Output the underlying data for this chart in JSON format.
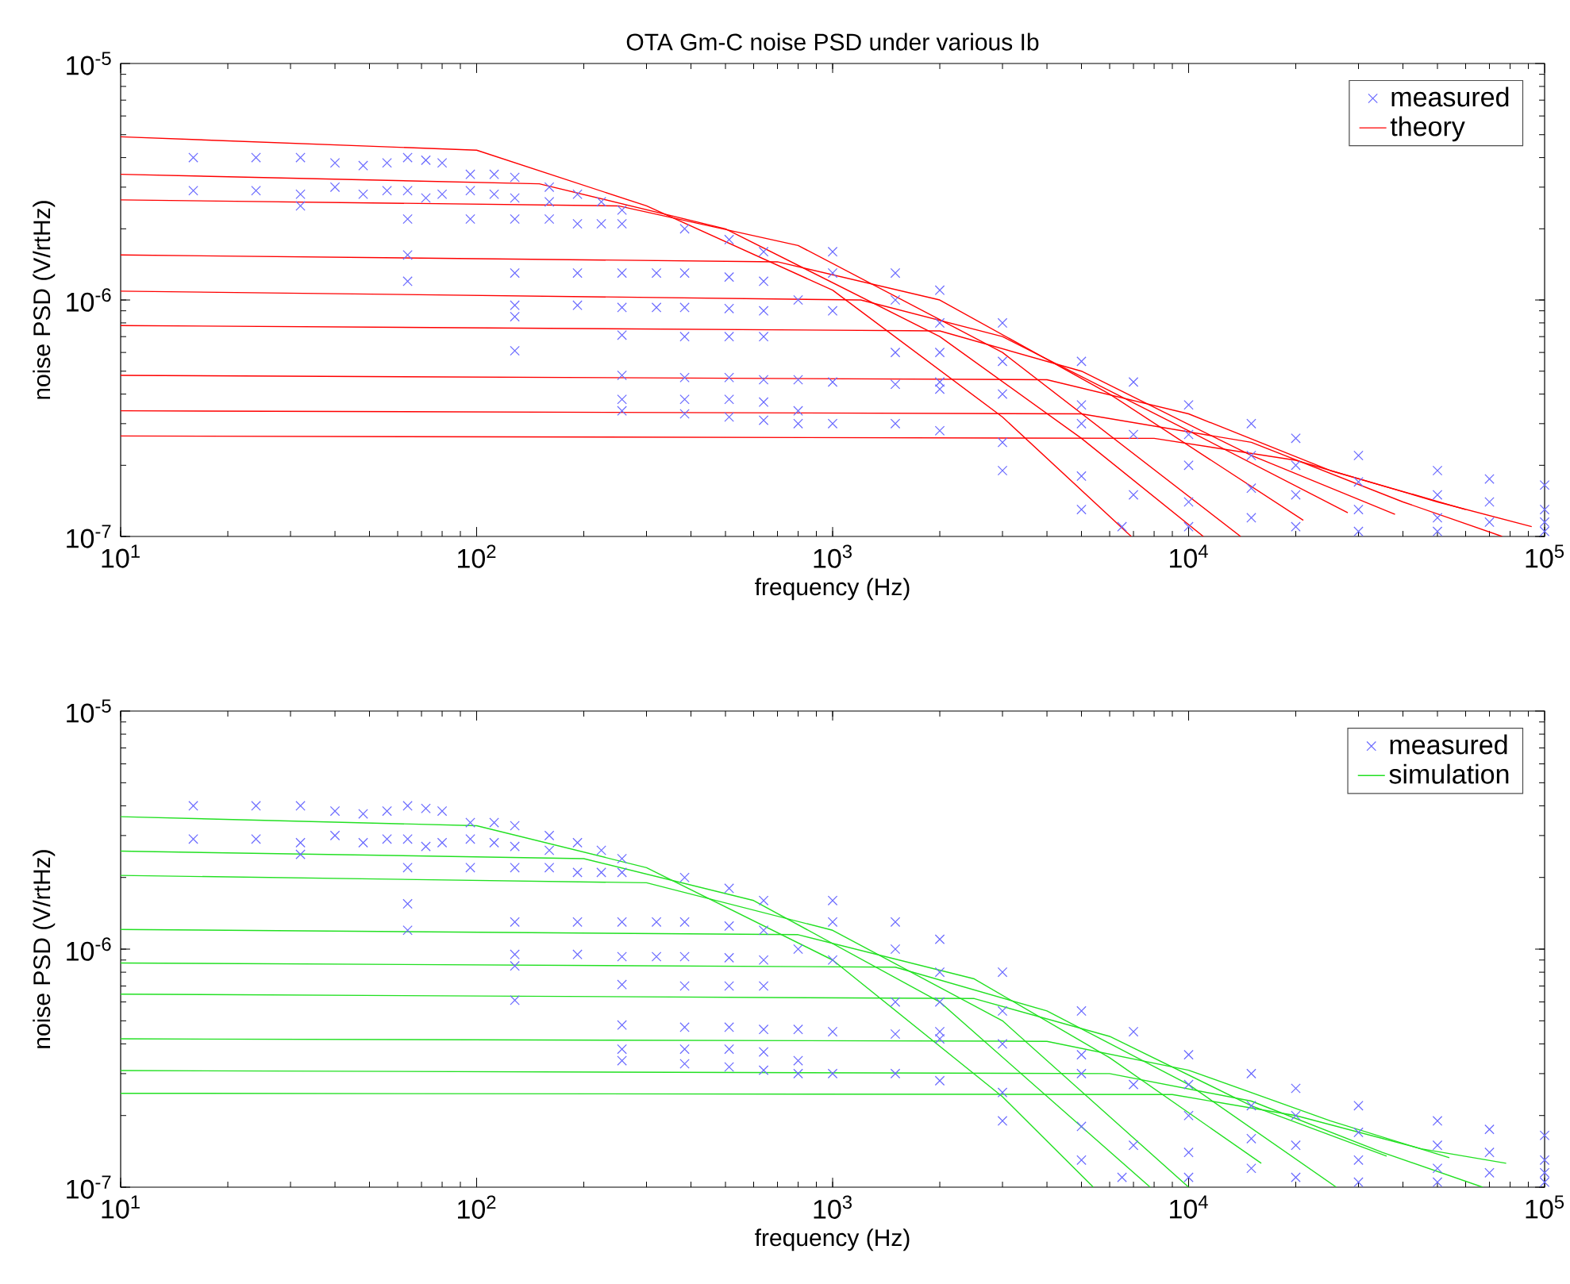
{
  "chart_data": [
    {
      "type": "line",
      "title": "OTA Gm-C noise PSD under various Ib",
      "xlabel": "frequency (Hz)",
      "ylabel": "noise PSD (V/rtHz)",
      "log": "xy",
      "xlim": [
        10,
        100000
      ],
      "ylim": [
        1e-07,
        1e-05
      ],
      "xticks": [
        {
          "value": 10,
          "label": "10$^{1}$"
        },
        {
          "value": 100,
          "label": "10$^{2}$"
        },
        {
          "value": 1000,
          "label": "10$^{3}$"
        },
        {
          "value": 10000,
          "label": "10$^{4}$"
        },
        {
          "value": 100000,
          "label": "10$^{5}$"
        }
      ],
      "yticks": [
        {
          "value": 1e-07,
          "label": "10$^{-7}$"
        },
        {
          "value": 1e-06,
          "label": "10$^{-6}$"
        },
        {
          "value": 1e-05,
          "label": "10$^{-5}$"
        }
      ],
      "legend": "top right",
      "series": [
        {
          "name": "measured",
          "type": "scatter",
          "marker": "cross",
          "color": "#6a6aff",
          "x": [
            16,
            16,
            24,
            24,
            32,
            32,
            32,
            40,
            40,
            48,
            48,
            56,
            56,
            64,
            64,
            64,
            64,
            64,
            72,
            72,
            80,
            80,
            96,
            96,
            96,
            112,
            112,
            128,
            128,
            128,
            128,
            128,
            128,
            128,
            160,
            160,
            160,
            192,
            192,
            192,
            192,
            224,
            224,
            256,
            256,
            256,
            256,
            256,
            256,
            256,
            256,
            320,
            320,
            384,
            384,
            384,
            384,
            384,
            384,
            384,
            512,
            512,
            512,
            512,
            512,
            512,
            512,
            640,
            640,
            640,
            640,
            640,
            640,
            640,
            800,
            800,
            800,
            800,
            1000,
            1000,
            1000,
            1000,
            1000,
            1500,
            1500,
            1500,
            1500,
            1500,
            2000,
            2000,
            2000,
            2000,
            2000,
            2000,
            3000,
            3000,
            3000,
            3000,
            3000,
            5000,
            5000,
            5000,
            5000,
            5000,
            6500,
            7000,
            7000,
            7000,
            10000,
            10000,
            10000,
            10000,
            10000,
            15000,
            15000,
            15000,
            15000,
            20000,
            20000,
            20000,
            20000,
            30000,
            30000,
            30000,
            30000,
            50000,
            50000,
            50000,
            50000,
            70000,
            70000,
            70000,
            100000,
            100000,
            100000,
            100000
          ],
          "values": [
            4e-06,
            2.9e-06,
            4e-06,
            2.9e-06,
            4e-06,
            2.8e-06,
            2.5e-06,
            3.8e-06,
            3e-06,
            3.7e-06,
            2.8e-06,
            3.8e-06,
            2.9e-06,
            4e-06,
            2.9e-06,
            2.2e-06,
            1.55e-06,
            1.2e-06,
            3.9e-06,
            2.7e-06,
            3.8e-06,
            2.8e-06,
            3.4e-06,
            2.9e-06,
            2.2e-06,
            3.4e-06,
            2.8e-06,
            3.3e-06,
            2.7e-06,
            2.2e-06,
            1.3e-06,
            9.5e-07,
            8.5e-07,
            6.1e-07,
            3e-06,
            2.6e-06,
            2.2e-06,
            2.8e-06,
            2.1e-06,
            1.3e-06,
            9.5e-07,
            2.6e-06,
            2.1e-06,
            2.4e-06,
            2.1e-06,
            1.3e-06,
            9.3e-07,
            7.1e-07,
            4.8e-07,
            3.8e-07,
            3.4e-07,
            1.3e-06,
            9.3e-07,
            2e-06,
            1.3e-06,
            9.3e-07,
            7e-07,
            4.7e-07,
            3.8e-07,
            3.3e-07,
            1.8e-06,
            1.25e-06,
            9.2e-07,
            7e-07,
            4.7e-07,
            3.8e-07,
            3.2e-07,
            1.6e-06,
            1.2e-06,
            9e-07,
            7e-07,
            4.6e-07,
            3.7e-07,
            3.1e-07,
            1e-06,
            4.6e-07,
            3.4e-07,
            3e-07,
            1.6e-06,
            1.3e-06,
            9e-07,
            4.5e-07,
            3e-07,
            1.3e-06,
            1e-06,
            6e-07,
            4.4e-07,
            3e-07,
            1.1e-06,
            8e-07,
            6e-07,
            4.2e-07,
            2.8e-07,
            4.5e-07,
            8e-07,
            5.5e-07,
            4e-07,
            2.5e-07,
            1.9e-07,
            5.5e-07,
            3.6e-07,
            3e-07,
            1.8e-07,
            1.3e-07,
            1.1e-07,
            4.5e-07,
            2.7e-07,
            1.5e-07,
            3.6e-07,
            2.7e-07,
            2e-07,
            1.4e-07,
            1.1e-07,
            3e-07,
            2.2e-07,
            1.6e-07,
            1.2e-07,
            2.6e-07,
            2e-07,
            1.5e-07,
            1.1e-07,
            2.2e-07,
            1.7e-07,
            1.3e-07,
            1.05e-07,
            1.9e-07,
            1.5e-07,
            1.2e-07,
            1.05e-07,
            1.75e-07,
            1.4e-07,
            1.15e-07,
            1.65e-07,
            1.3e-07,
            1.15e-07,
            1.05e-07
          ]
        },
        {
          "name": "theory",
          "color": "#ff0000",
          "x": [
            10,
            100,
            300,
            1000,
            3000,
            6900
          ],
          "values": [
            4.9e-06,
            4.3e-06,
            2.5e-06,
            1.1e-06,
            3.2e-07,
            1e-07
          ]
        },
        {
          "color": "#ff0000",
          "x": [
            10,
            150,
            500,
            2000,
            5000,
            11000
          ],
          "values": [
            3.4e-06,
            3.1e-06,
            2e-06,
            7e-07,
            2.6e-07,
            1e-07
          ]
        },
        {
          "color": "#ff0000",
          "x": [
            10,
            250,
            800,
            3000,
            14000
          ],
          "values": [
            2.65e-06,
            2.5e-06,
            1.7e-06,
            6e-07,
            1e-07
          ]
        },
        {
          "color": "#ff0000",
          "x": [
            10,
            700,
            2000,
            6000,
            21000
          ],
          "values": [
            1.55e-06,
            1.45e-06,
            1e-06,
            4e-07,
            1.17e-07
          ]
        },
        {
          "color": "#ff0000",
          "x": [
            10,
            1200,
            3000,
            10000,
            28000
          ],
          "values": [
            1.09e-06,
            1e-06,
            7e-07,
            2.8e-07,
            1.26e-07
          ]
        },
        {
          "color": "#ff0000",
          "x": [
            10,
            2000,
            5000,
            15000,
            38000
          ],
          "values": [
            7.8e-07,
            7.4e-07,
            5e-07,
            2.2e-07,
            1.24e-07
          ]
        },
        {
          "color": "#ff0000",
          "x": [
            10,
            4000,
            10000,
            25000,
            60000
          ],
          "values": [
            4.8e-07,
            4.6e-07,
            3.3e-07,
            1.9e-07,
            1.3e-07
          ]
        },
        {
          "color": "#ff0000",
          "x": [
            10,
            5000,
            15000,
            40000,
            76000
          ],
          "values": [
            3.4e-07,
            3.3e-07,
            2.5e-07,
            1.4e-07,
            1e-07
          ]
        },
        {
          "color": "#ff0000",
          "x": [
            10,
            8000,
            20000,
            50000,
            92000
          ],
          "values": [
            2.66e-07,
            2.6e-07,
            2.1e-07,
            1.4e-07,
            1.1e-07
          ]
        }
      ]
    },
    {
      "type": "line",
      "xlabel": "frequency (Hz)",
      "ylabel": "noise PSD (V/rtHz)",
      "log": "xy",
      "xlim": [
        10,
        100000
      ],
      "ylim": [
        1e-07,
        1e-05
      ],
      "xticks": [
        {
          "value": 10,
          "label": "10$^{1}$"
        },
        {
          "value": 100,
          "label": "10$^{2}$"
        },
        {
          "value": 1000,
          "label": "10$^{3}$"
        },
        {
          "value": 10000,
          "label": "10$^{4}$"
        },
        {
          "value": 100000,
          "label": "10$^{5}$"
        }
      ],
      "yticks": [
        {
          "value": 1e-07,
          "label": "10$^{-7}$"
        },
        {
          "value": 1e-06,
          "label": "10$^{-6}$"
        },
        {
          "value": 1e-05,
          "label": "10$^{-5}$"
        }
      ],
      "legend": "top right",
      "series": [
        {
          "name": "measured",
          "type": "scatter",
          "marker": "cross",
          "color": "#6a6aff",
          "x": [
            16,
            16,
            24,
            24,
            32,
            32,
            32,
            40,
            40,
            48,
            48,
            56,
            56,
            64,
            64,
            64,
            64,
            64,
            72,
            72,
            80,
            80,
            96,
            96,
            96,
            112,
            112,
            128,
            128,
            128,
            128,
            128,
            128,
            128,
            160,
            160,
            160,
            192,
            192,
            192,
            192,
            224,
            224,
            256,
            256,
            256,
            256,
            256,
            256,
            256,
            256,
            320,
            320,
            384,
            384,
            384,
            384,
            384,
            384,
            384,
            512,
            512,
            512,
            512,
            512,
            512,
            512,
            640,
            640,
            640,
            640,
            640,
            640,
            640,
            800,
            800,
            800,
            800,
            1000,
            1000,
            1000,
            1000,
            1000,
            1500,
            1500,
            1500,
            1500,
            1500,
            2000,
            2000,
            2000,
            2000,
            2000,
            2000,
            3000,
            3000,
            3000,
            3000,
            3000,
            5000,
            5000,
            5000,
            5000,
            5000,
            6500,
            7000,
            7000,
            7000,
            10000,
            10000,
            10000,
            10000,
            10000,
            15000,
            15000,
            15000,
            15000,
            20000,
            20000,
            20000,
            20000,
            30000,
            30000,
            30000,
            30000,
            50000,
            50000,
            50000,
            50000,
            70000,
            70000,
            70000,
            100000,
            100000,
            100000,
            100000
          ],
          "values": [
            4e-06,
            2.9e-06,
            4e-06,
            2.9e-06,
            4e-06,
            2.8e-06,
            2.5e-06,
            3.8e-06,
            3e-06,
            3.7e-06,
            2.8e-06,
            3.8e-06,
            2.9e-06,
            4e-06,
            2.9e-06,
            2.2e-06,
            1.55e-06,
            1.2e-06,
            3.9e-06,
            2.7e-06,
            3.8e-06,
            2.8e-06,
            3.4e-06,
            2.9e-06,
            2.2e-06,
            3.4e-06,
            2.8e-06,
            3.3e-06,
            2.7e-06,
            2.2e-06,
            1.3e-06,
            9.5e-07,
            8.5e-07,
            6.1e-07,
            3e-06,
            2.6e-06,
            2.2e-06,
            2.8e-06,
            2.1e-06,
            1.3e-06,
            9.5e-07,
            2.6e-06,
            2.1e-06,
            2.4e-06,
            2.1e-06,
            1.3e-06,
            9.3e-07,
            7.1e-07,
            4.8e-07,
            3.8e-07,
            3.4e-07,
            1.3e-06,
            9.3e-07,
            2e-06,
            1.3e-06,
            9.3e-07,
            7e-07,
            4.7e-07,
            3.8e-07,
            3.3e-07,
            1.8e-06,
            1.25e-06,
            9.2e-07,
            7e-07,
            4.7e-07,
            3.8e-07,
            3.2e-07,
            1.6e-06,
            1.2e-06,
            9e-07,
            7e-07,
            4.6e-07,
            3.7e-07,
            3.1e-07,
            1e-06,
            4.6e-07,
            3.4e-07,
            3e-07,
            1.6e-06,
            1.3e-06,
            9e-07,
            4.5e-07,
            3e-07,
            1.3e-06,
            1e-06,
            6e-07,
            4.4e-07,
            3e-07,
            1.1e-06,
            8e-07,
            6e-07,
            4.2e-07,
            2.8e-07,
            4.5e-07,
            8e-07,
            5.5e-07,
            4e-07,
            2.5e-07,
            1.9e-07,
            5.5e-07,
            3.6e-07,
            3e-07,
            1.8e-07,
            1.3e-07,
            1.1e-07,
            4.5e-07,
            2.7e-07,
            1.5e-07,
            3.6e-07,
            2.7e-07,
            2e-07,
            1.4e-07,
            1.1e-07,
            3e-07,
            2.2e-07,
            1.6e-07,
            1.2e-07,
            2.6e-07,
            2e-07,
            1.5e-07,
            1.1e-07,
            2.2e-07,
            1.7e-07,
            1.3e-07,
            1.05e-07,
            1.9e-07,
            1.5e-07,
            1.2e-07,
            1.05e-07,
            1.75e-07,
            1.4e-07,
            1.15e-07,
            1.65e-07,
            1.3e-07,
            1.15e-07,
            1.05e-07
          ]
        },
        {
          "name": "simulation",
          "color": "#22e022",
          "x": [
            10,
            100,
            300,
            1000,
            3000,
            5400
          ],
          "values": [
            3.6e-06,
            3.3e-06,
            2.2e-06,
            9e-07,
            2.4e-07,
            1e-07
          ]
        },
        {
          "color": "#22e022",
          "x": [
            10,
            200,
            600,
            2000,
            7800
          ],
          "values": [
            2.58e-06,
            2.4e-06,
            1.6e-06,
            6e-07,
            1e-07
          ]
        },
        {
          "color": "#22e022",
          "x": [
            10,
            300,
            1000,
            3000,
            10000
          ],
          "values": [
            2.04e-06,
            1.9e-06,
            1.2e-06,
            5e-07,
            1e-07
          ]
        },
        {
          "color": "#22e022",
          "x": [
            10,
            800,
            2500,
            6000,
            16000
          ],
          "values": [
            1.21e-06,
            1.15e-06,
            7.5e-07,
            3.5e-07,
            1.26e-07
          ]
        },
        {
          "color": "#22e022",
          "x": [
            10,
            1500,
            4000,
            10000,
            26000
          ],
          "values": [
            8.75e-07,
            8.4e-07,
            5.5e-07,
            2.7e-07,
            1e-07
          ]
        },
        {
          "color": "#22e022",
          "x": [
            10,
            2500,
            6000,
            15000,
            36000
          ],
          "values": [
            6.47e-07,
            6.2e-07,
            4.3e-07,
            2.2e-07,
            1.35e-07
          ]
        },
        {
          "color": "#22e022",
          "x": [
            10,
            4000,
            10000,
            25000,
            54000
          ],
          "values": [
            4.2e-07,
            4.1e-07,
            3.1e-07,
            1.9e-07,
            1.33e-07
          ]
        },
        {
          "color": "#22e022",
          "x": [
            10,
            6000,
            15000,
            35000,
            67000
          ],
          "values": [
            3.09e-07,
            3e-07,
            2.3e-07,
            1.4e-07,
            1e-07
          ]
        },
        {
          "color": "#22e022",
          "x": [
            10,
            9000,
            20000,
            45000,
            78000
          ],
          "values": [
            2.48e-07,
            2.45e-07,
            2e-07,
            1.45e-07,
            1.26e-07
          ]
        }
      ]
    }
  ]
}
